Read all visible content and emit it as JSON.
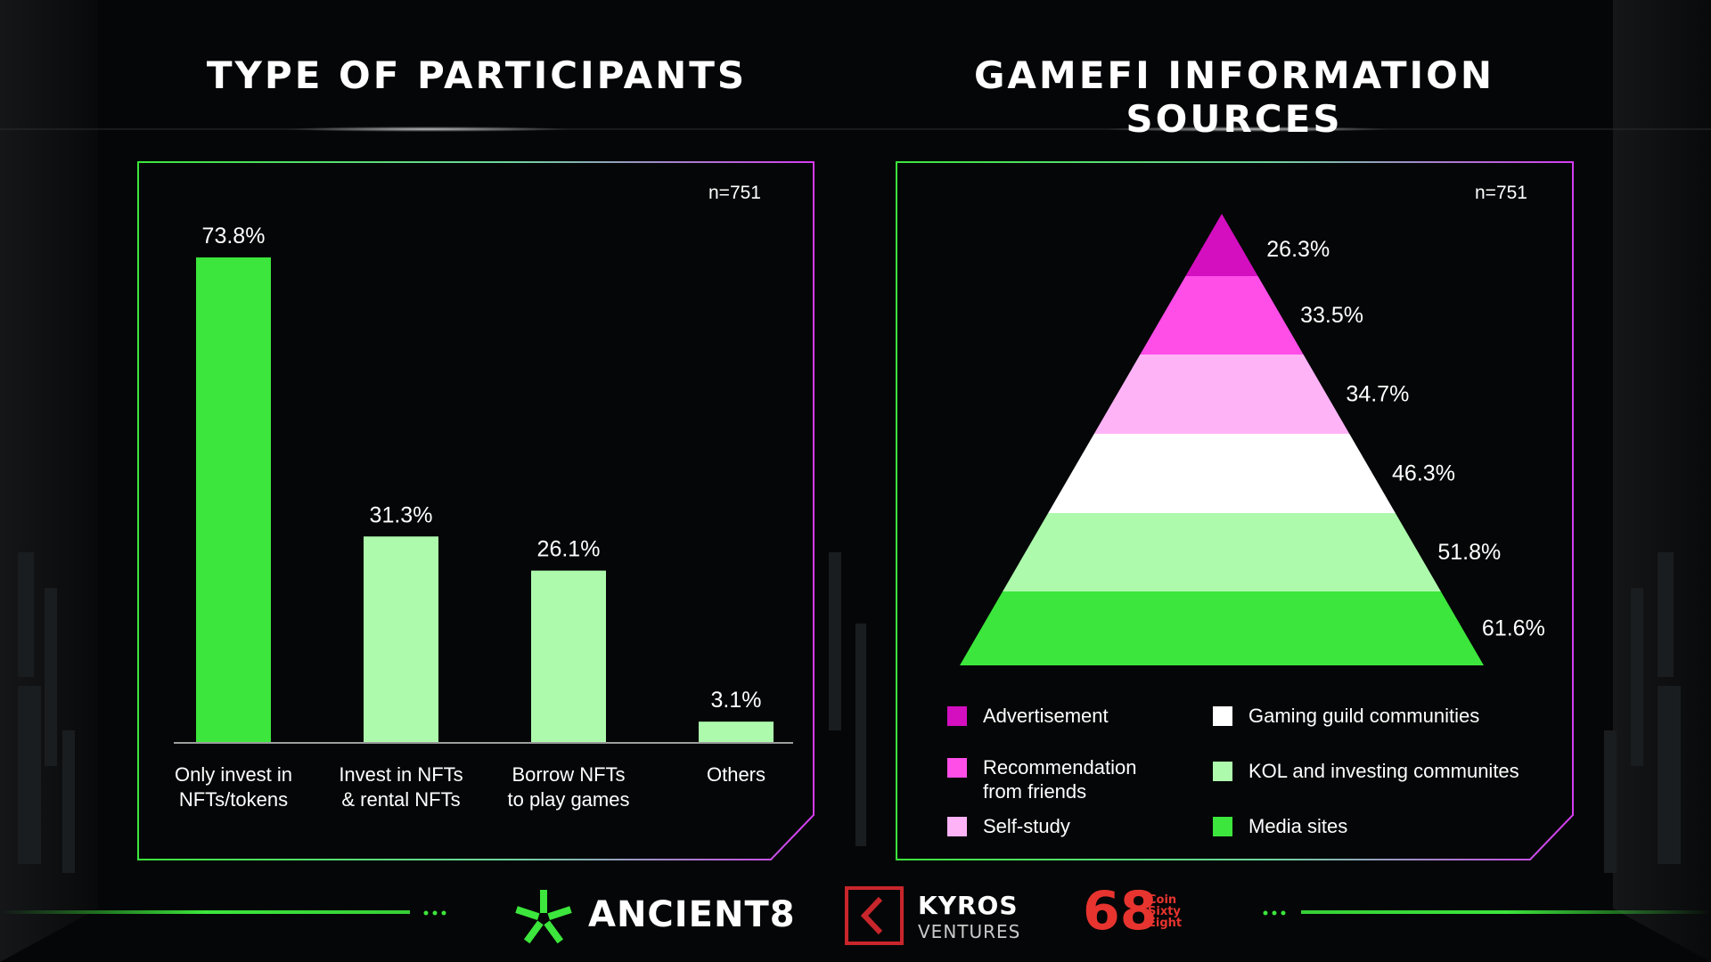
{
  "left_chart": {
    "title": "TYPE OF PARTICIPANTS",
    "sample": "n=751",
    "chart_data": {
      "type": "bar",
      "categories": [
        "Only invest in\nNFTs/tokens",
        "Invest in NFTs\n& rental NFTs",
        "Borrow NFTs\nto play games",
        "Others"
      ],
      "values": [
        73.8,
        31.3,
        26.1,
        3.1
      ],
      "value_labels": [
        "73.8%",
        "31.3%",
        "26.1%",
        "3.1%"
      ],
      "colors": [
        "#3ce63c",
        "#adfaad",
        "#adfaad",
        "#adfaad"
      ],
      "ylim": [
        0,
        73.8
      ],
      "unit": "%"
    }
  },
  "right_chart": {
    "title": "GAMEFI INFORMATION SOURCES",
    "sample": "n=751",
    "chart_data": {
      "type": "pyramid",
      "categories": [
        "Advertisement",
        "Recommendation from friends",
        "Self-study",
        "Gaming guild communities",
        "KOL and investing communites",
        "Media sites"
      ],
      "values": [
        26.3,
        33.5,
        34.7,
        46.3,
        51.8,
        61.6
      ],
      "value_labels": [
        "26.3%",
        "33.5%",
        "34.7%",
        "46.3%",
        "51.8%",
        "61.6%"
      ],
      "colors": [
        "#d40fc0",
        "#ff4de8",
        "#ffb3f7",
        "#ffffff",
        "#adfaad",
        "#3ce63c"
      ],
      "legend_labels": [
        "Advertisement",
        "Recommendation\nfrom friends",
        "Self-study",
        "Gaming guild communities",
        "KOL and investing communites",
        "Media sites"
      ],
      "unit": "%"
    }
  },
  "footer": {
    "logos": [
      {
        "name": "ANCIENT8",
        "icon": "ancient8-star-icon"
      },
      {
        "name": "KYROS",
        "sub": "VENTURES",
        "icon": "kyros-chevron-icon"
      },
      {
        "name": "68",
        "sub": "Coin\nSixty\nEight",
        "icon": "coin68-icon"
      }
    ],
    "brand_colors": {
      "green": "#3ce63c",
      "magenta": "#ff4de8",
      "kyros_red": "#c8262c",
      "coin68_red": "#e8342f"
    }
  }
}
